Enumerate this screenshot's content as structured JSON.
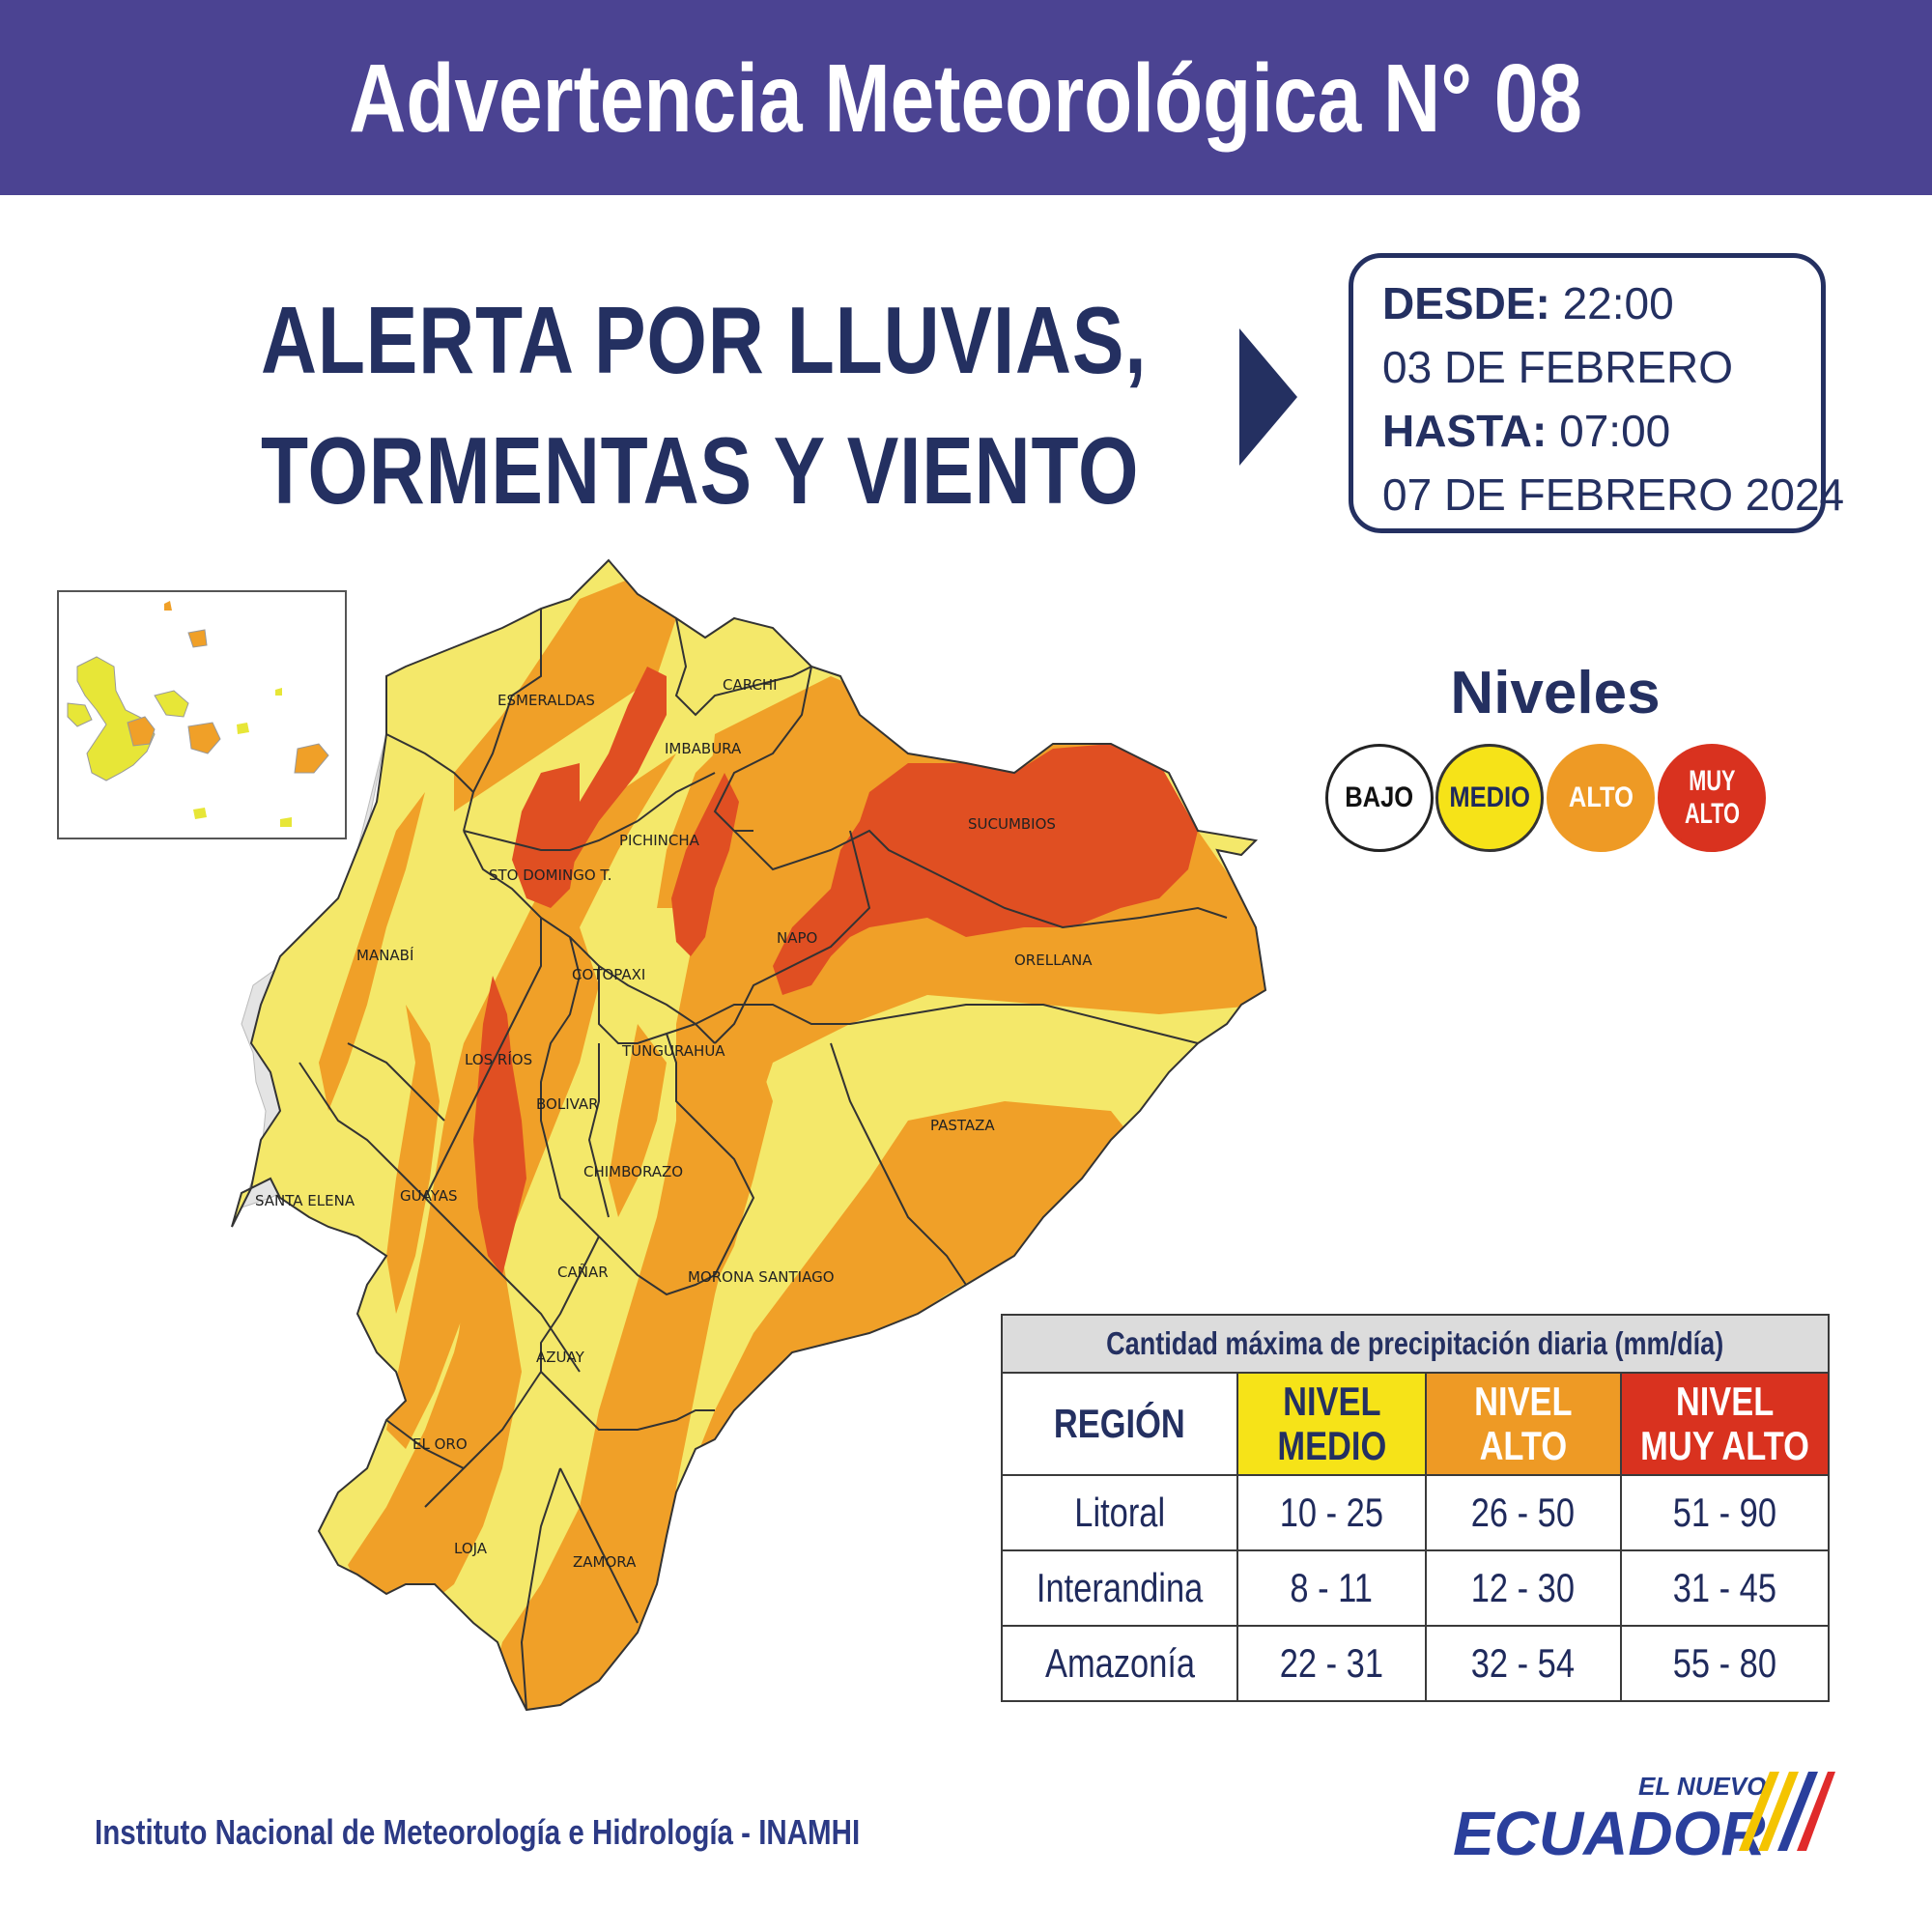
{
  "header": {
    "title": "Advertencia Meteorológica N° 08"
  },
  "alert": {
    "line1_a": "ALERTA POR ",
    "line1_b": "LLUVIAS,",
    "line2": "TORMENTAS Y VIENTO"
  },
  "dates": {
    "desde_label": "DESDE:",
    "desde_time": "22:00",
    "desde_date": "03 DE FEBRERO",
    "hasta_label": "HASTA:",
    "hasta_time": "07:00",
    "hasta_date": "07 DE FEBRERO 2024"
  },
  "levels": {
    "title": "Niveles",
    "items": [
      {
        "label": "BAJO",
        "color": "#ffffff"
      },
      {
        "label": "MEDIO",
        "color": "#f6e318"
      },
      {
        "label": "ALTO",
        "color": "#ee9a25"
      },
      {
        "label_1": "MUY",
        "label_2": "ALTO",
        "color": "#d9321f"
      }
    ]
  },
  "map": {
    "provinces": [
      "ESMERALDAS",
      "CARCHI",
      "IMBABURA",
      "PICHINCHA",
      "SUCUMBIOS",
      "STO DOMINGO T.",
      "MANABÍ",
      "NAPO",
      "ORELLANA",
      "COTOPAXI",
      "TUNGURAHUA",
      "LOS RÍOS",
      "BOLIVAR",
      "PASTAZA",
      "CHIMBORAZO",
      "SANTA ELENA",
      "GUAYAS",
      "CAÑAR",
      "MORONA SANTIAGO",
      "AZUAY",
      "EL ORO",
      "LOJA",
      "ZAMORA"
    ]
  },
  "table": {
    "caption": "Cantidad máxima de precipitación diaria (mm/día)",
    "header": {
      "region": "REGIÓN",
      "medio_1": "NIVEL",
      "medio_2": "MEDIO",
      "alto_1": "NIVEL",
      "alto_2": "ALTO",
      "muyalto_1": "NIVEL",
      "muyalto_2": "MUY ALTO"
    },
    "rows": [
      {
        "region": "Litoral",
        "medio": "10 - 25",
        "alto": "26 - 50",
        "muy_alto": "51 - 90"
      },
      {
        "region": "Interandina",
        "medio": "8 - 11",
        "alto": "12 - 30",
        "muy_alto": "31 - 45"
      },
      {
        "region": "Amazonía",
        "medio": "22 - 31",
        "alto": "32 - 54",
        "muy_alto": "55 - 80"
      }
    ]
  },
  "colors": {
    "header_bg": "#4b4392",
    "navy": "#243061",
    "medio": "#f6e318",
    "alto": "#ee9a25",
    "muy_alto": "#d9321f",
    "map_medio": "#f4e86a",
    "map_alto": "#f0a028",
    "map_muy_alto": "#e04f22"
  },
  "footer": {
    "institution": "Instituto Nacional de Meteorología e Hidrología - INAMHI",
    "logo_small": "EL NUEVO",
    "logo_big": "ECUADOR"
  }
}
